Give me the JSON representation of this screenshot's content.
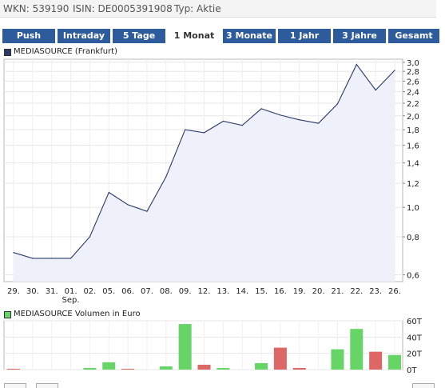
{
  "info_bar": {
    "wkn": "WKN: 539190",
    "isin": "ISIN: DE0005391908",
    "type": "Typ: Aktie"
  },
  "tabs": [
    {
      "label": "Push",
      "active": false
    },
    {
      "label": "Intraday",
      "active": false
    },
    {
      "label": "5 Tage",
      "active": false
    },
    {
      "label": "1 Monat",
      "active": true
    },
    {
      "label": "3 Monate",
      "active": false
    },
    {
      "label": "1 Jahr",
      "active": false
    },
    {
      "label": "3 Jahre",
      "active": false
    },
    {
      "label": "Gesamt",
      "active": false
    }
  ],
  "colors": {
    "tab_background": "#2e5b9c",
    "price_line": "#2b3a67",
    "price_fill": "#eef1fa",
    "volume_up": "#66d466",
    "volume_down": "#dd6666",
    "legend_price": "#2b3a67",
    "legend_volume": "#66d466"
  },
  "chart_data": [
    {
      "type": "line",
      "legend": "MEDIASOURCE (Frankfurt)",
      "y_tick_labels": [
        "3,0",
        "2,8",
        "2,6",
        "2,4",
        "2,2",
        "2,0",
        "1,8",
        "1,6",
        "1,4",
        "1,2",
        "1,0",
        "0,8",
        "0,6"
      ],
      "y_ticks": [
        3.0,
        2.8,
        2.6,
        2.4,
        2.2,
        2.0,
        1.8,
        1.6,
        1.4,
        1.2,
        1.0,
        0.8,
        0.6
      ],
      "ylim": [
        0.57,
        3.07
      ],
      "y_scale": "log",
      "x_tick_labels": [
        "29.",
        "30.",
        "31.",
        "01.",
        "02.",
        "05.",
        "06.",
        "07.",
        "08.",
        "09.",
        "12.",
        "13.",
        "14.",
        "15.",
        "16.",
        "19.",
        "20.",
        "21.",
        "22.",
        "23.",
        "26."
      ],
      "x_sublabel": "Sep.",
      "values": [
        0.71,
        0.68,
        0.68,
        0.68,
        0.8,
        1.12,
        1.02,
        0.97,
        1.26,
        1.8,
        1.76,
        1.92,
        1.86,
        2.11,
        2.01,
        1.94,
        1.89,
        2.19,
        2.95,
        2.43,
        2.82
      ],
      "grid": true
    },
    {
      "type": "bar",
      "legend": "MEDIASOURCE Volumen in Euro",
      "y_tick_labels": [
        "60T",
        "40T",
        "20T",
        "0T"
      ],
      "y_ticks": [
        60,
        40,
        20,
        0
      ],
      "ylim": [
        0,
        60
      ],
      "unit": "thousand EUR",
      "values": [
        1,
        0,
        0,
        0,
        2,
        9,
        1,
        0,
        4,
        56,
        6,
        2,
        0,
        8,
        27,
        2,
        0,
        25,
        50,
        22,
        18
      ],
      "direction": [
        "down",
        "",
        "",
        "",
        "up",
        "up",
        "down",
        "",
        "up",
        "up",
        "down",
        "up",
        "",
        "up",
        "down",
        "down",
        "",
        "up",
        "up",
        "down",
        "up"
      ],
      "grid": true
    }
  ]
}
